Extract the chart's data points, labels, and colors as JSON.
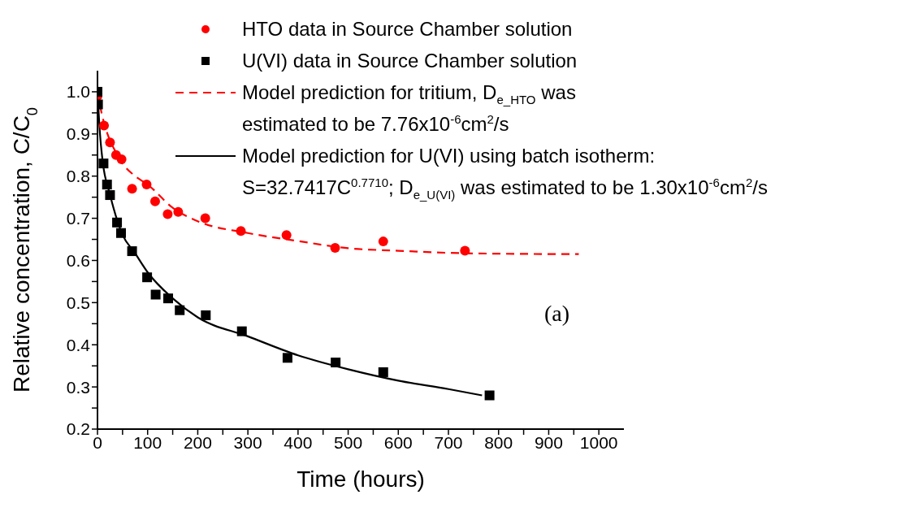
{
  "chart_data": {
    "type": "scatter",
    "xlabel": "Time (hours)",
    "ylabel": "Relative concentration, C/C$_{0}$",
    "annotations": [
      "(a)"
    ],
    "xlim": [
      0,
      1050
    ],
    "ylim": [
      0.2,
      1.05
    ],
    "xticks": [
      0,
      {
        "value": 50,
        "label": null
      },
      100,
      {
        "value": 150,
        "label": null
      },
      200,
      {
        "value": 250,
        "label": null
      },
      300,
      {
        "value": 350,
        "label": null
      },
      400,
      {
        "value": 450,
        "label": null
      },
      500,
      {
        "value": 550,
        "label": null
      },
      600,
      {
        "value": 650,
        "label": null
      },
      700,
      {
        "value": 750,
        "label": null
      },
      800,
      {
        "value": 850,
        "label": null
      },
      900,
      {
        "value": 950,
        "label": null
      },
      1000
    ],
    "yticks": [
      {
        "value": 0.2,
        "label": "0.2"
      },
      {
        "value": 0.25,
        "label": null
      },
      {
        "value": 0.3,
        "label": "0.3"
      },
      {
        "value": 0.35,
        "label": null
      },
      {
        "value": 0.4,
        "label": "0.4"
      },
      {
        "value": 0.45,
        "label": null
      },
      {
        "value": 0.5,
        "label": "0.5"
      },
      {
        "value": 0.55,
        "label": null
      },
      {
        "value": 0.6,
        "label": "0.6"
      },
      {
        "value": 0.65,
        "label": null
      },
      {
        "value": 0.7,
        "label": "0.7"
      },
      {
        "value": 0.75,
        "label": null
      },
      {
        "value": 0.8,
        "label": "0.8"
      },
      {
        "value": 0.85,
        "label": null
      },
      {
        "value": 0.9,
        "label": "0.9"
      },
      {
        "value": 0.95,
        "label": null
      },
      {
        "value": 1.0,
        "label": "1.0"
      }
    ],
    "grid": false,
    "legend": "top right",
    "series": [
      {
        "name": "HTO data in Source Chamber solution",
        "marker": "circle",
        "color": "#ff0000",
        "x": [
          0,
          13,
          25,
          37,
          48,
          69,
          98,
          115,
          140,
          161,
          215,
          286,
          377,
          474,
          570,
          733
        ],
        "values": [
          0.99,
          0.92,
          0.88,
          0.85,
          0.84,
          0.77,
          0.78,
          0.74,
          0.71,
          0.715,
          0.7,
          0.67,
          0.66,
          0.63,
          0.645,
          0.623
        ]
      },
      {
        "name": "U(VI) data in Source Chamber solution",
        "marker": "square",
        "color": "#000000",
        "x": [
          0,
          1,
          12,
          19,
          25,
          39,
          47,
          69,
          99,
          116,
          141,
          164,
          216,
          288,
          379,
          475,
          570,
          782
        ],
        "values": [
          1.0,
          0.97,
          0.83,
          0.78,
          0.755,
          0.69,
          0.665,
          0.622,
          0.56,
          0.519,
          0.51,
          0.482,
          0.47,
          0.432,
          0.369,
          0.358,
          0.335,
          0.28
        ]
      },
      {
        "name": "Model prediction for tritium, D$_{e_HTO}$ was\nestimated to be 7.76x10$^{-6}$cm$^{2}$/s",
        "type": "line",
        "marker": "none",
        "line_style": "dashed",
        "color": "#ff0000",
        "x": [
          0,
          10,
          20,
          35,
          50,
          75,
          100,
          150,
          200,
          300,
          400,
          500,
          600,
          700,
          800,
          960
        ],
        "values": [
          1.0,
          0.94,
          0.9,
          0.86,
          0.83,
          0.8,
          0.78,
          0.725,
          0.693,
          0.665,
          0.646,
          0.629,
          0.623,
          0.618,
          0.616,
          0.615
        ]
      },
      {
        "name": "Model prediction for U(VI) using batch isotherm:\nS=32.7417C$^{0.7710}$; D$_{e_U(VI)}$ was estimated to be 1.30x10$^{-6}$cm$^{2}$/s",
        "type": "line",
        "marker": "none",
        "line_style": "solid",
        "color": "#000000",
        "x": [
          0,
          5,
          10,
          25,
          50,
          75,
          100,
          150,
          200,
          300,
          400,
          500,
          600,
          700,
          767
        ],
        "values": [
          1.0,
          0.9,
          0.838,
          0.756,
          0.661,
          0.617,
          0.572,
          0.51,
          0.465,
          0.42,
          0.375,
          0.342,
          0.315,
          0.295,
          0.28
        ]
      }
    ]
  }
}
